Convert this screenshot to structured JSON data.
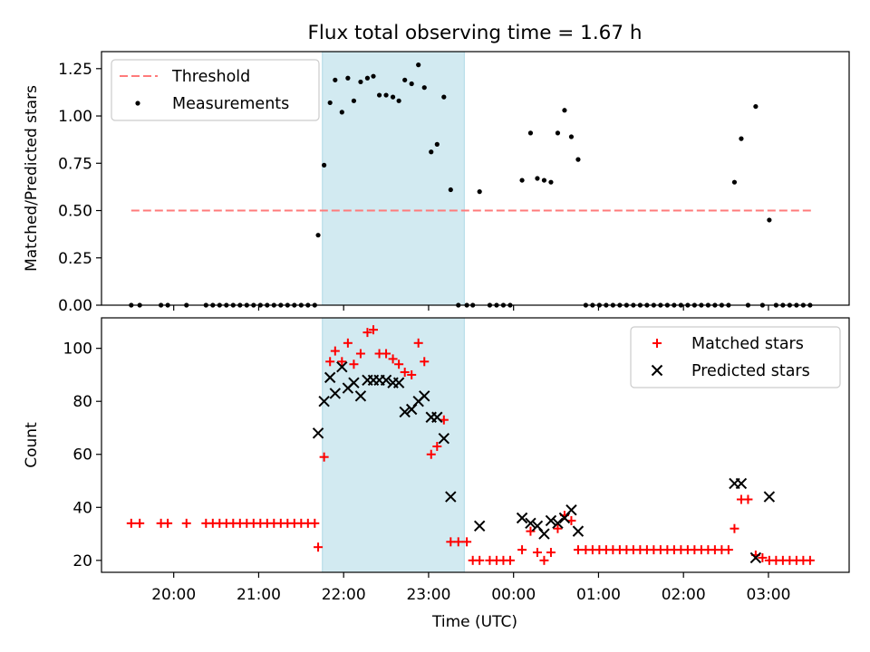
{
  "figure_title": "Flux total observing time = 1.67 h",
  "colors": {
    "threshold": "#ff7b7b",
    "measurement": "#000000",
    "matched": "#ff0000",
    "predicted": "#000000",
    "highlight": "#add8e6"
  },
  "chart_data": [
    {
      "type": "scatter",
      "title": "Flux total observing time = 1.67 h",
      "xlabel": "",
      "ylabel": "Matched/Predicted stars",
      "xlim": [
        19.15,
        27.95
      ],
      "ylim": [
        0.0,
        1.34
      ],
      "yticks": [
        0.0,
        0.25,
        0.5,
        0.75,
        1.0,
        1.25
      ],
      "ytick_labels": [
        "0.00",
        "0.25",
        "0.50",
        "0.75",
        "1.00",
        "1.25"
      ],
      "highlight_span": [
        21.75,
        23.42
      ],
      "legend": {
        "position": "top-left",
        "threshold_label": "Threshold",
        "measurements_label": "Measurements"
      },
      "threshold": {
        "y": 0.5,
        "x_range": [
          19.5,
          27.5
        ]
      },
      "series": [
        {
          "name": "Measurements",
          "points": [
            [
              19.5,
              0
            ],
            [
              19.6,
              0
            ],
            [
              19.85,
              0
            ],
            [
              19.93,
              0
            ],
            [
              20.15,
              0
            ],
            [
              20.38,
              0
            ],
            [
              20.46,
              0
            ],
            [
              20.54,
              0
            ],
            [
              20.62,
              0
            ],
            [
              20.7,
              0
            ],
            [
              20.78,
              0
            ],
            [
              20.86,
              0
            ],
            [
              20.94,
              0
            ],
            [
              21.02,
              0
            ],
            [
              21.1,
              0
            ],
            [
              21.18,
              0
            ],
            [
              21.26,
              0
            ],
            [
              21.34,
              0
            ],
            [
              21.42,
              0
            ],
            [
              21.5,
              0
            ],
            [
              21.58,
              0
            ],
            [
              21.66,
              0
            ],
            [
              21.7,
              0.37
            ],
            [
              21.77,
              0.74
            ],
            [
              21.84,
              1.07
            ],
            [
              21.9,
              1.19
            ],
            [
              21.98,
              1.02
            ],
            [
              22.05,
              1.2
            ],
            [
              22.12,
              1.08
            ],
            [
              22.2,
              1.18
            ],
            [
              22.28,
              1.2
            ],
            [
              22.35,
              1.21
            ],
            [
              22.42,
              1.11
            ],
            [
              22.5,
              1.11
            ],
            [
              22.58,
              1.1
            ],
            [
              22.65,
              1.08
            ],
            [
              22.72,
              1.19
            ],
            [
              22.8,
              1.17
            ],
            [
              22.88,
              1.27
            ],
            [
              22.95,
              1.15
            ],
            [
              23.03,
              0.81
            ],
            [
              23.1,
              0.85
            ],
            [
              23.18,
              1.1
            ],
            [
              23.26,
              0.61
            ],
            [
              23.35,
              0
            ],
            [
              23.45,
              0
            ],
            [
              23.52,
              0
            ],
            [
              23.6,
              0.6
            ],
            [
              23.72,
              0
            ],
            [
              23.8,
              0
            ],
            [
              23.88,
              0
            ],
            [
              23.96,
              0
            ],
            [
              24.1,
              0.66
            ],
            [
              24.2,
              0.91
            ],
            [
              24.28,
              0.67
            ],
            [
              24.36,
              0.66
            ],
            [
              24.44,
              0.65
            ],
            [
              24.52,
              0.91
            ],
            [
              24.6,
              1.03
            ],
            [
              24.68,
              0.89
            ],
            [
              24.76,
              0.77
            ],
            [
              24.85,
              0
            ],
            [
              24.93,
              0
            ],
            [
              25.01,
              0
            ],
            [
              25.09,
              0
            ],
            [
              25.17,
              0
            ],
            [
              25.25,
              0
            ],
            [
              25.33,
              0
            ],
            [
              25.41,
              0
            ],
            [
              25.49,
              0
            ],
            [
              25.57,
              0
            ],
            [
              25.65,
              0
            ],
            [
              25.73,
              0
            ],
            [
              25.81,
              0
            ],
            [
              25.89,
              0
            ],
            [
              25.97,
              0
            ],
            [
              26.05,
              0
            ],
            [
              26.13,
              0
            ],
            [
              26.21,
              0
            ],
            [
              26.29,
              0
            ],
            [
              26.37,
              0
            ],
            [
              26.45,
              0
            ],
            [
              26.53,
              0
            ],
            [
              26.6,
              0.65
            ],
            [
              26.68,
              0.88
            ],
            [
              26.76,
              0
            ],
            [
              26.85,
              1.05
            ],
            [
              26.93,
              0
            ],
            [
              27.01,
              0.45
            ],
            [
              27.09,
              0
            ],
            [
              27.17,
              0
            ],
            [
              27.25,
              0
            ],
            [
              27.33,
              0
            ],
            [
              27.41,
              0
            ],
            [
              27.49,
              0
            ]
          ]
        }
      ]
    },
    {
      "type": "scatter",
      "xlabel": "Time (UTC)",
      "ylabel": "Count",
      "xlim": [
        19.15,
        27.95
      ],
      "ylim": [
        15.5,
        111.5
      ],
      "yticks": [
        20,
        40,
        60,
        80,
        100
      ],
      "ytick_labels": [
        "20",
        "40",
        "60",
        "80",
        "100"
      ],
      "xticks": [
        20,
        21,
        22,
        23,
        24,
        25,
        26,
        27
      ],
      "xtick_labels": [
        "20:00",
        "21:00",
        "22:00",
        "23:00",
        "00:00",
        "01:00",
        "02:00",
        "03:00"
      ],
      "highlight_span": [
        21.75,
        23.42
      ],
      "legend": {
        "position": "top-right"
      },
      "series": [
        {
          "name": "Matched stars",
          "marker": "plus",
          "points": [
            [
              19.5,
              34
            ],
            [
              19.6,
              34
            ],
            [
              19.85,
              34
            ],
            [
              19.93,
              34
            ],
            [
              20.15,
              34
            ],
            [
              20.38,
              34
            ],
            [
              20.46,
              34
            ],
            [
              20.54,
              34
            ],
            [
              20.62,
              34
            ],
            [
              20.7,
              34
            ],
            [
              20.78,
              34
            ],
            [
              20.86,
              34
            ],
            [
              20.94,
              34
            ],
            [
              21.02,
              34
            ],
            [
              21.1,
              34
            ],
            [
              21.18,
              34
            ],
            [
              21.26,
              34
            ],
            [
              21.34,
              34
            ],
            [
              21.42,
              34
            ],
            [
              21.5,
              34
            ],
            [
              21.58,
              34
            ],
            [
              21.66,
              34
            ],
            [
              21.7,
              25
            ],
            [
              21.77,
              59
            ],
            [
              21.84,
              95
            ],
            [
              21.9,
              99
            ],
            [
              21.98,
              95
            ],
            [
              22.05,
              102
            ],
            [
              22.12,
              94
            ],
            [
              22.2,
              98
            ],
            [
              22.28,
              106
            ],
            [
              22.35,
              107
            ],
            [
              22.42,
              98
            ],
            [
              22.5,
              98
            ],
            [
              22.58,
              96
            ],
            [
              22.65,
              94
            ],
            [
              22.72,
              91
            ],
            [
              22.8,
              90
            ],
            [
              22.88,
              102
            ],
            [
              22.95,
              95
            ],
            [
              23.03,
              60
            ],
            [
              23.1,
              63
            ],
            [
              23.18,
              73
            ],
            [
              23.26,
              27
            ],
            [
              23.35,
              27
            ],
            [
              23.45,
              27
            ],
            [
              23.52,
              20
            ],
            [
              23.6,
              20
            ],
            [
              23.72,
              20
            ],
            [
              23.8,
              20
            ],
            [
              23.88,
              20
            ],
            [
              23.96,
              20
            ],
            [
              24.1,
              24
            ],
            [
              24.2,
              31
            ],
            [
              24.28,
              23
            ],
            [
              24.36,
              20
            ],
            [
              24.44,
              23
            ],
            [
              24.52,
              32
            ],
            [
              24.6,
              37
            ],
            [
              24.68,
              35
            ],
            [
              24.76,
              24
            ],
            [
              24.85,
              24
            ],
            [
              24.93,
              24
            ],
            [
              25.01,
              24
            ],
            [
              25.09,
              24
            ],
            [
              25.17,
              24
            ],
            [
              25.25,
              24
            ],
            [
              25.33,
              24
            ],
            [
              25.41,
              24
            ],
            [
              25.49,
              24
            ],
            [
              25.57,
              24
            ],
            [
              25.65,
              24
            ],
            [
              25.73,
              24
            ],
            [
              25.81,
              24
            ],
            [
              25.89,
              24
            ],
            [
              25.97,
              24
            ],
            [
              26.05,
              24
            ],
            [
              26.13,
              24
            ],
            [
              26.21,
              24
            ],
            [
              26.29,
              24
            ],
            [
              26.37,
              24
            ],
            [
              26.45,
              24
            ],
            [
              26.53,
              24
            ],
            [
              26.6,
              32
            ],
            [
              26.68,
              43
            ],
            [
              26.76,
              43
            ],
            [
              26.85,
              22
            ],
            [
              26.93,
              21
            ],
            [
              27.01,
              20
            ],
            [
              27.09,
              20
            ],
            [
              27.17,
              20
            ],
            [
              27.25,
              20
            ],
            [
              27.33,
              20
            ],
            [
              27.41,
              20
            ],
            [
              27.49,
              20
            ]
          ]
        },
        {
          "name": "Predicted stars",
          "marker": "x",
          "points": [
            [
              21.7,
              68
            ],
            [
              21.77,
              80
            ],
            [
              21.84,
              89
            ],
            [
              21.9,
              83
            ],
            [
              21.98,
              93
            ],
            [
              22.05,
              85
            ],
            [
              22.12,
              87
            ],
            [
              22.2,
              82
            ],
            [
              22.28,
              88
            ],
            [
              22.35,
              88
            ],
            [
              22.42,
              88
            ],
            [
              22.5,
              88
            ],
            [
              22.58,
              87
            ],
            [
              22.65,
              87
            ],
            [
              22.72,
              76
            ],
            [
              22.8,
              77
            ],
            [
              22.88,
              80
            ],
            [
              22.95,
              82
            ],
            [
              23.03,
              74
            ],
            [
              23.1,
              74
            ],
            [
              23.18,
              66
            ],
            [
              23.26,
              44
            ],
            [
              23.6,
              33
            ],
            [
              24.1,
              36
            ],
            [
              24.2,
              34
            ],
            [
              24.28,
              33
            ],
            [
              24.36,
              30
            ],
            [
              24.44,
              35
            ],
            [
              24.52,
              34
            ],
            [
              24.6,
              36
            ],
            [
              24.68,
              39
            ],
            [
              24.76,
              31
            ],
            [
              26.6,
              49
            ],
            [
              26.68,
              49
            ],
            [
              26.85,
              21
            ],
            [
              27.01,
              44
            ]
          ]
        }
      ]
    }
  ]
}
